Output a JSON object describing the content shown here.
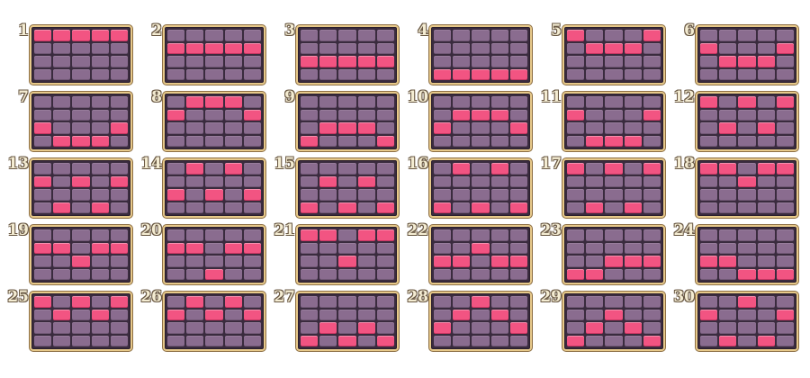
{
  "paylines": [
    {
      "number": "1",
      "pattern": [
        0,
        0,
        0,
        0,
        0
      ]
    },
    {
      "number": "2",
      "pattern": [
        1,
        1,
        1,
        1,
        1
      ]
    },
    {
      "number": "3",
      "pattern": [
        2,
        2,
        2,
        2,
        2
      ]
    },
    {
      "number": "4",
      "pattern": [
        3,
        3,
        3,
        3,
        3
      ]
    },
    {
      "number": "5",
      "pattern": [
        0,
        1,
        1,
        1,
        0
      ]
    },
    {
      "number": "6",
      "pattern": [
        1,
        2,
        2,
        2,
        1
      ]
    },
    {
      "number": "7",
      "pattern": [
        2,
        3,
        3,
        3,
        2
      ]
    },
    {
      "number": "8",
      "pattern": [
        1,
        0,
        0,
        0,
        1
      ]
    },
    {
      "number": "9",
      "pattern": [
        3,
        2,
        2,
        2,
        3
      ]
    },
    {
      "number": "10",
      "pattern": [
        2,
        1,
        1,
        1,
        2
      ]
    },
    {
      "number": "11",
      "pattern": [
        1,
        3,
        3,
        3,
        1
      ]
    },
    {
      "number": "12",
      "pattern": [
        0,
        2,
        0,
        2,
        0
      ]
    },
    {
      "number": "13",
      "pattern": [
        1,
        3,
        1,
        3,
        1
      ]
    },
    {
      "number": "14",
      "pattern": [
        2,
        0,
        2,
        0,
        2
      ]
    },
    {
      "number": "15",
      "pattern": [
        3,
        1,
        3,
        1,
        3
      ]
    },
    {
      "number": "16",
      "pattern": [
        3,
        0,
        3,
        0,
        3
      ]
    },
    {
      "number": "17",
      "pattern": [
        0,
        3,
        0,
        3,
        0
      ]
    },
    {
      "number": "18",
      "pattern": [
        0,
        0,
        1,
        0,
        0
      ]
    },
    {
      "number": "19",
      "pattern": [
        1,
        1,
        2,
        1,
        1
      ]
    },
    {
      "number": "20",
      "pattern": [
        1,
        1,
        3,
        1,
        1
      ]
    },
    {
      "number": "21",
      "pattern": [
        0,
        0,
        2,
        0,
        0
      ]
    },
    {
      "number": "22",
      "pattern": [
        2,
        2,
        1,
        2,
        2
      ]
    },
    {
      "number": "23",
      "pattern": [
        3,
        3,
        2,
        2,
        2
      ]
    },
    {
      "number": "24",
      "pattern": [
        2,
        2,
        3,
        3,
        3
      ]
    },
    {
      "number": "25",
      "pattern": [
        0,
        1,
        0,
        1,
        0
      ]
    },
    {
      "number": "26",
      "pattern": [
        1,
        0,
        1,
        0,
        1
      ]
    },
    {
      "number": "27",
      "pattern": [
        3,
        2,
        3,
        2,
        3
      ]
    },
    {
      "number": "28",
      "pattern": [
        2,
        1,
        0,
        1,
        2
      ]
    },
    {
      "number": "29",
      "pattern": [
        3,
        2,
        1,
        2,
        3
      ]
    },
    {
      "number": "30",
      "pattern": [
        1,
        3,
        0,
        3,
        1
      ]
    }
  ],
  "colors": {
    "active_cell": "#f25482",
    "inactive_cell": "#8a6c8f",
    "board_border": "#e7c98a",
    "board_background": "#3a2b3e",
    "number_text": "#f4ecd2"
  }
}
